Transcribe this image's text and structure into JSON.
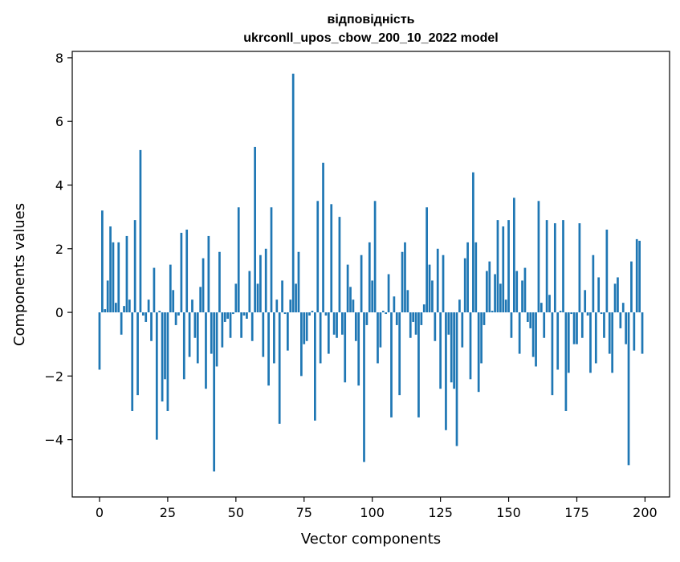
{
  "chart_data": {
    "type": "bar",
    "title": [
      "відповідність",
      "ukrconll_upos_cbow_200_10_2022 model"
    ],
    "xlabel": "Vector components",
    "ylabel": "Components values",
    "xlim": [
      -10,
      209
    ],
    "ylim": [
      -5.8,
      8.2
    ],
    "xticks": [
      0,
      25,
      50,
      75,
      100,
      125,
      150,
      175,
      200
    ],
    "yticks": [
      -4,
      -2,
      0,
      2,
      4,
      6,
      8
    ],
    "ytick_labels": [
      "−4",
      "−2",
      "0",
      "2",
      "4",
      "6",
      "8"
    ],
    "grid": false,
    "bar_color": "#1f77b4",
    "x": [
      0,
      1,
      2,
      3,
      4,
      5,
      6,
      7,
      8,
      9,
      10,
      11,
      12,
      13,
      14,
      15,
      16,
      17,
      18,
      19,
      20,
      21,
      22,
      23,
      24,
      25,
      26,
      27,
      28,
      29,
      30,
      31,
      32,
      33,
      34,
      35,
      36,
      37,
      38,
      39,
      40,
      41,
      42,
      43,
      44,
      45,
      46,
      47,
      48,
      49,
      50,
      51,
      52,
      53,
      54,
      55,
      56,
      57,
      58,
      59,
      60,
      61,
      62,
      63,
      64,
      65,
      66,
      67,
      68,
      69,
      70,
      71,
      72,
      73,
      74,
      75,
      76,
      77,
      78,
      79,
      80,
      81,
      82,
      83,
      84,
      85,
      86,
      87,
      88,
      89,
      90,
      91,
      92,
      93,
      94,
      95,
      96,
      97,
      98,
      99,
      100,
      101,
      102,
      103,
      104,
      105,
      106,
      107,
      108,
      109,
      110,
      111,
      112,
      113,
      114,
      115,
      116,
      117,
      118,
      119,
      120,
      121,
      122,
      123,
      124,
      125,
      126,
      127,
      128,
      129,
      130,
      131,
      132,
      133,
      134,
      135,
      136,
      137,
      138,
      139,
      140,
      141,
      142,
      143,
      144,
      145,
      146,
      147,
      148,
      149,
      150,
      151,
      152,
      153,
      154,
      155,
      156,
      157,
      158,
      159,
      160,
      161,
      162,
      163,
      164,
      165,
      166,
      167,
      168,
      169,
      170,
      171,
      172,
      173,
      174,
      175,
      176,
      177,
      178,
      179,
      180,
      181,
      182,
      183,
      184,
      185,
      186,
      187,
      188,
      189,
      190,
      191,
      192,
      193,
      194,
      195,
      196,
      197,
      198,
      199
    ],
    "values": [
      -1.8,
      3.2,
      0.1,
      1.0,
      2.7,
      2.2,
      0.3,
      2.2,
      -0.7,
      0.2,
      2.4,
      0.4,
      -3.1,
      2.9,
      -2.6,
      5.1,
      -0.1,
      -0.3,
      0.4,
      -0.9,
      1.4,
      -4.0,
      0.05,
      -2.8,
      -2.1,
      -3.1,
      1.5,
      0.7,
      -0.4,
      -0.1,
      2.5,
      -2.1,
      2.6,
      -1.4,
      0.4,
      -0.8,
      -1.6,
      0.8,
      1.7,
      -2.4,
      2.4,
      -1.3,
      -5.0,
      -1.7,
      1.9,
      -1.1,
      -0.3,
      -0.2,
      -0.8,
      -0.05,
      0.9,
      3.3,
      -0.8,
      -0.1,
      -0.2,
      1.3,
      -0.9,
      5.2,
      0.9,
      1.8,
      -1.4,
      2.0,
      -2.3,
      3.3,
      -1.6,
      0.4,
      -3.5,
      1.0,
      -0.05,
      -1.2,
      0.4,
      7.5,
      0.9,
      1.9,
      -2.0,
      -1.0,
      -0.9,
      -0.1,
      0.05,
      -3.4,
      3.5,
      -1.6,
      4.7,
      -0.1,
      -1.3,
      3.4,
      -0.7,
      -0.8,
      3.0,
      -0.7,
      -2.2,
      1.5,
      0.8,
      0.4,
      -0.9,
      -2.3,
      1.8,
      -4.7,
      -0.4,
      2.2,
      1.0,
      3.5,
      -1.6,
      -1.1,
      0.05,
      -0.05,
      1.2,
      -3.3,
      0.5,
      -0.4,
      -2.6,
      1.9,
      2.2,
      0.7,
      -0.8,
      -0.3,
      -0.7,
      -3.3,
      -0.4,
      0.25,
      3.3,
      1.5,
      1.0,
      -0.9,
      2.0,
      -2.4,
      1.8,
      -3.7,
      -0.7,
      -2.2,
      -2.4,
      -4.2,
      0.4,
      -1.1,
      1.7,
      2.2,
      -2.1,
      4.4,
      2.2,
      -2.5,
      -1.6,
      -0.4,
      1.3,
      1.6,
      0.05,
      1.2,
      2.9,
      0.9,
      2.7,
      0.4,
      2.9,
      -0.8,
      3.6,
      1.3,
      -1.3,
      1.0,
      1.4,
      -0.3,
      -0.5,
      -1.4,
      -1.7,
      3.5,
      0.3,
      -0.8,
      2.9,
      0.55,
      -2.6,
      2.8,
      -1.8,
      0.05,
      2.9,
      -3.1,
      -1.9,
      -0.05,
      -1.0,
      -1.0,
      2.8,
      -0.8,
      0.7,
      -0.1,
      -1.9,
      1.8,
      -1.6,
      1.1,
      -0.05,
      -0.8,
      2.6,
      -1.3,
      -1.9,
      0.9,
      1.1,
      -0.5,
      0.3,
      -1.0,
      -4.8,
      1.6,
      -1.2,
      2.3,
      2.25,
      -1.3
    ]
  }
}
